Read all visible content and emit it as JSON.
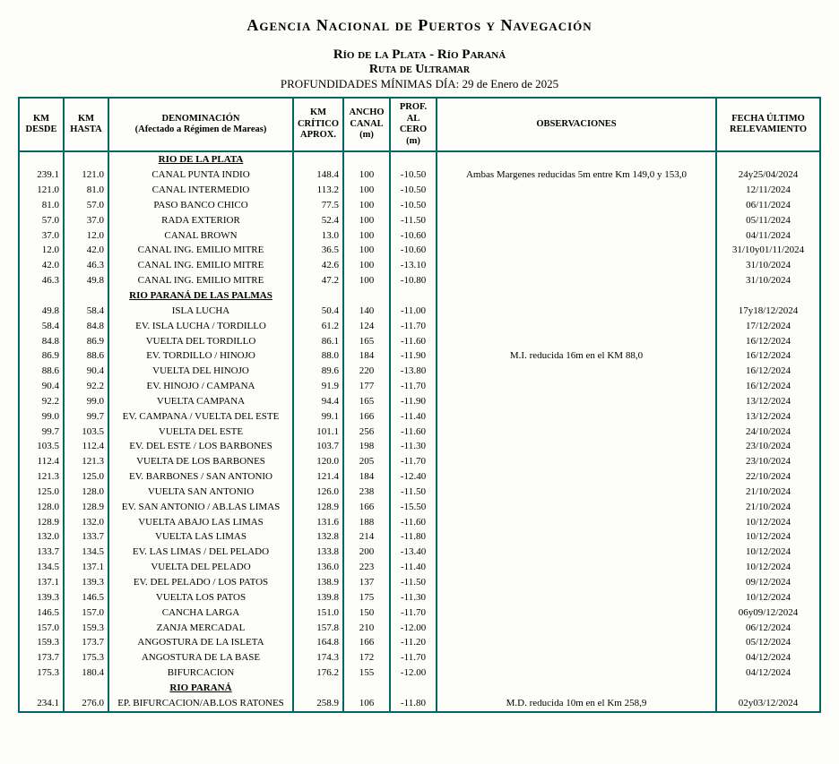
{
  "header": {
    "agency": "Agencia Nacional de Puertos y Navegación",
    "line1": "Río de la Plata - Río Paraná",
    "line2": "Ruta de Ultramar",
    "date_line": "PROFUNDIDADES MÍNIMAS DÍA: 29 de Enero de 2025"
  },
  "columns": {
    "km_desde": "KM DESDE",
    "km_hasta": "KM HASTA",
    "denom_l1": "DENOMINACIÓN",
    "denom_l2": "(Afectado a Régimen de Mareas)",
    "km_crit_l1": "KM",
    "km_crit_l2": "CRÍTICO",
    "km_crit_l3": "APROX.",
    "ancho_l1": "ANCHO",
    "ancho_l2": "CANAL",
    "ancho_l3": "(m)",
    "prof_l1": "PROF.",
    "prof_l2": "AL CERO",
    "prof_l3": "(m)",
    "obs": "OBSERVACIONES",
    "fecha_l1": "FECHA ÚLTIMO",
    "fecha_l2": "RELEVAMIENTO"
  },
  "colors": {
    "border": "#006666",
    "bg": "#fdfdf9"
  },
  "sections": [
    {
      "title": "RIO DE LA PLATA",
      "rows": [
        {
          "d": "239.1",
          "h": "121.0",
          "n": "CANAL PUNTA INDIO",
          "kc": "148.4",
          "a": "100",
          "p": "-10.50",
          "o": "Ambas Margenes reducidas 5m entre Km 149,0 y 153,0",
          "f": "24y25/04/2024"
        },
        {
          "d": "121.0",
          "h": "81.0",
          "n": "CANAL INTERMEDIO",
          "kc": "113.2",
          "a": "100",
          "p": "-10.50",
          "o": "",
          "f": "12/11/2024"
        },
        {
          "d": "81.0",
          "h": "57.0",
          "n": "PASO BANCO CHICO",
          "kc": "77.5",
          "a": "100",
          "p": "-10.50",
          "o": "",
          "f": "06/11/2024"
        },
        {
          "d": "57.0",
          "h": "37.0",
          "n": "RADA EXTERIOR",
          "kc": "52.4",
          "a": "100",
          "p": "-11.50",
          "o": "",
          "f": "05/11/2024"
        },
        {
          "d": "37.0",
          "h": "12.0",
          "n": "CANAL BROWN",
          "kc": "13.0",
          "a": "100",
          "p": "-10.60",
          "o": "",
          "f": "04/11/2024"
        },
        {
          "d": "12.0",
          "h": "42.0",
          "n": "CANAL ING. EMILIO MITRE",
          "kc": "36.5",
          "a": "100",
          "p": "-10.60",
          "o": "",
          "f": "31/10y01/11/2024"
        },
        {
          "d": "42.0",
          "h": "46.3",
          "n": "CANAL ING. EMILIO MITRE",
          "kc": "42.6",
          "a": "100",
          "p": "-13.10",
          "o": "",
          "f": "31/10/2024"
        },
        {
          "d": "46.3",
          "h": "49.8",
          "n": "CANAL ING. EMILIO MITRE",
          "kc": "47.2",
          "a": "100",
          "p": "-10.80",
          "o": "",
          "f": "31/10/2024"
        }
      ]
    },
    {
      "title": "RIO PARANÁ DE LAS PALMAS",
      "rows": [
        {
          "d": "49.8",
          "h": "58.4",
          "n": "ISLA LUCHA",
          "kc": "50.4",
          "a": "140",
          "p": "-11.00",
          "o": "",
          "f": "17y18/12/2024"
        },
        {
          "d": "58.4",
          "h": "84.8",
          "n": "EV. ISLA LUCHA / TORDILLO",
          "kc": "61.2",
          "a": "124",
          "p": "-11.70",
          "o": "",
          "f": "17/12/2024"
        },
        {
          "d": "84.8",
          "h": "86.9",
          "n": "VUELTA DEL TORDILLO",
          "kc": "86.1",
          "a": "165",
          "p": "-11.60",
          "o": "",
          "f": "16/12/2024"
        },
        {
          "d": "86.9",
          "h": "88.6",
          "n": "EV. TORDILLO / HINOJO",
          "kc": "88.0",
          "a": "184",
          "p": "-11.90",
          "o": "M.I. reducida 16m en el KM 88,0",
          "f": "16/12/2024"
        },
        {
          "d": "88.6",
          "h": "90.4",
          "n": "VUELTA DEL HINOJO",
          "kc": "89.6",
          "a": "220",
          "p": "-13.80",
          "o": "",
          "f": "16/12/2024"
        },
        {
          "d": "90.4",
          "h": "92.2",
          "n": "EV. HINOJO / CAMPANA",
          "kc": "91.9",
          "a": "177",
          "p": "-11.70",
          "o": "",
          "f": "16/12/2024"
        },
        {
          "d": "92.2",
          "h": "99.0",
          "n": "VUELTA CAMPANA",
          "kc": "94.4",
          "a": "165",
          "p": "-11.90",
          "o": "",
          "f": "13/12/2024"
        },
        {
          "d": "99.0",
          "h": "99.7",
          "n": "EV. CAMPANA / VUELTA DEL ESTE",
          "kc": "99.1",
          "a": "166",
          "p": "-11.40",
          "o": "",
          "f": "13/12/2024"
        },
        {
          "d": "99.7",
          "h": "103.5",
          "n": "VUELTA DEL ESTE",
          "kc": "101.1",
          "a": "256",
          "p": "-11.60",
          "o": "",
          "f": "24/10/2024"
        },
        {
          "d": "103.5",
          "h": "112.4",
          "n": "EV. DEL ESTE / LOS BARBONES",
          "kc": "103.7",
          "a": "198",
          "p": "-11.30",
          "o": "",
          "f": "23/10/2024"
        },
        {
          "d": "112.4",
          "h": "121.3",
          "n": "VUELTA DE LOS BARBONES",
          "kc": "120.0",
          "a": "205",
          "p": "-11.70",
          "o": "",
          "f": "23/10/2024"
        },
        {
          "d": "121.3",
          "h": "125.0",
          "n": "EV. BARBONES / SAN ANTONIO",
          "kc": "121.4",
          "a": "184",
          "p": "-12.40",
          "o": "",
          "f": "22/10/2024"
        },
        {
          "d": "125.0",
          "h": "128.0",
          "n": "VUELTA SAN ANTONIO",
          "kc": "126.0",
          "a": "238",
          "p": "-11.50",
          "o": "",
          "f": "21/10/2024"
        },
        {
          "d": "128.0",
          "h": "128.9",
          "n": "EV.  SAN ANTONIO / AB.LAS LIMAS",
          "kc": "128.9",
          "a": "166",
          "p": "-15.50",
          "o": "",
          "f": "21/10/2024"
        },
        {
          "d": "128.9",
          "h": "132.0",
          "n": "VUELTA ABAJO LAS LIMAS",
          "kc": "131.6",
          "a": "188",
          "p": "-11.60",
          "o": "",
          "f": "10/12/2024"
        },
        {
          "d": "132.0",
          "h": "133.7",
          "n": "VUELTA LAS LIMAS",
          "kc": "132.8",
          "a": "214",
          "p": "-11.80",
          "o": "",
          "f": "10/12/2024"
        },
        {
          "d": "133.7",
          "h": "134.5",
          "n": "EV. LAS LIMAS / DEL PELADO",
          "kc": "133.8",
          "a": "200",
          "p": "-13.40",
          "o": "",
          "f": "10/12/2024"
        },
        {
          "d": "134.5",
          "h": "137.1",
          "n": "VUELTA DEL PELADO",
          "kc": "136.0",
          "a": "223",
          "p": "-11.40",
          "o": "",
          "f": "10/12/2024"
        },
        {
          "d": "137.1",
          "h": "139.3",
          "n": "EV. DEL PELADO / LOS PATOS",
          "kc": "138.9",
          "a": "137",
          "p": "-11.50",
          "o": "",
          "f": "09/12/2024"
        },
        {
          "d": "139.3",
          "h": "146.5",
          "n": "VUELTA LOS PATOS",
          "kc": "139.8",
          "a": "175",
          "p": "-11.30",
          "o": "",
          "f": "10/12/2024"
        },
        {
          "d": "146.5",
          "h": "157.0",
          "n": "CANCHA LARGA",
          "kc": "151.0",
          "a": "150",
          "p": "-11.70",
          "o": "",
          "f": "06y09/12/2024"
        },
        {
          "d": "157.0",
          "h": "159.3",
          "n": "ZANJA MERCADAL",
          "kc": "157.8",
          "a": "210",
          "p": "-12.00",
          "o": "",
          "f": "06/12/2024"
        },
        {
          "d": "159.3",
          "h": "173.7",
          "n": "ANGOSTURA DE LA ISLETA",
          "kc": "164.8",
          "a": "166",
          "p": "-11.20",
          "o": "",
          "f": "05/12/2024"
        },
        {
          "d": "173.7",
          "h": "175.3",
          "n": "ANGOSTURA DE LA BASE",
          "kc": "174.3",
          "a": "172",
          "p": "-11.70",
          "o": "",
          "f": "04/12/2024"
        },
        {
          "d": "175.3",
          "h": "180.4",
          "n": "BIFURCACION",
          "kc": "176.2",
          "a": "155",
          "p": "-12.00",
          "o": "",
          "f": "04/12/2024"
        }
      ]
    },
    {
      "title": "RIO PARANÁ",
      "rows": [
        {
          "d": "234.1",
          "h": "276.0",
          "n": "EP. BIFURCACION/AB.LOS RATONES",
          "kc": "258.9",
          "a": "106",
          "p": "-11.80",
          "o": "M.D. reducida 10m en el Km 258,9",
          "f": "02y03/12/2024"
        }
      ]
    }
  ]
}
